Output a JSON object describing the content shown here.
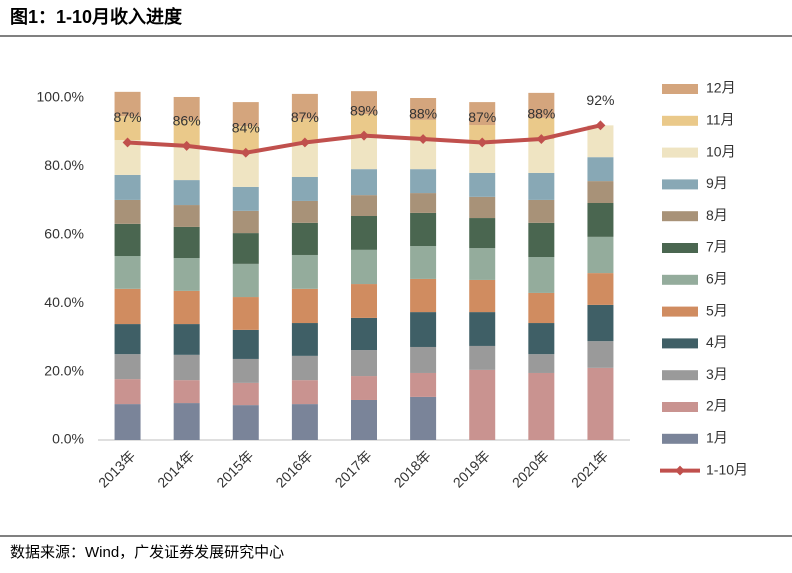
{
  "header": {
    "title": "图1：1-10月收入进度"
  },
  "footer": {
    "source": "数据来源：Wind，广发证券发展研究中心"
  },
  "chart_data": {
    "type": "stacked_bar_line",
    "categories": [
      "2013年",
      "2014年",
      "2015年",
      "2016年",
      "2017年",
      "2018年",
      "2019年",
      "2020年",
      "2021年"
    ],
    "ylim": [
      0,
      110
    ],
    "yticks": [
      {
        "value": 0,
        "label": "0.0%"
      },
      {
        "value": 20,
        "label": "20.0%"
      },
      {
        "value": 40,
        "label": "40.0%"
      },
      {
        "value": 60,
        "label": "60.0%"
      },
      {
        "value": 80,
        "label": "80.0%"
      },
      {
        "value": 100,
        "label": "100.0%"
      }
    ],
    "grid": false,
    "legend": "right",
    "series": [
      {
        "name": "1月",
        "color": "#7a8499",
        "values": [
          10.5,
          10.8,
          10.2,
          10.5,
          11.7,
          12.6,
          null,
          null,
          null
        ]
      },
      {
        "name": "2月",
        "color": "#c99390",
        "values": [
          7.3,
          6.7,
          6.5,
          7.0,
          7.0,
          7.0,
          20.5,
          19.6,
          21.1
        ]
      },
      {
        "name": "3月",
        "color": "#9a9a9a",
        "values": [
          7.3,
          7.4,
          7.0,
          7.1,
          7.6,
          7.6,
          7.0,
          5.5,
          7.8
        ]
      },
      {
        "name": "4月",
        "color": "#3f5f66",
        "values": [
          8.8,
          9.0,
          8.5,
          9.6,
          9.4,
          10.2,
          9.9,
          9.1,
          10.6
        ]
      },
      {
        "name": "5月",
        "color": "#d08c60",
        "values": [
          10.3,
          9.7,
          9.6,
          10.0,
          9.9,
          9.7,
          9.4,
          8.8,
          9.3
        ]
      },
      {
        "name": "6月",
        "color": "#94ac9c",
        "values": [
          9.6,
          9.6,
          9.7,
          9.9,
          10.0,
          9.6,
          9.3,
          10.5,
          10.6
        ]
      },
      {
        "name": "7月",
        "color": "#4a6650",
        "values": [
          9.4,
          9.1,
          9.0,
          9.4,
          9.9,
          9.7,
          8.8,
          10.0,
          9.9
        ]
      },
      {
        "name": "8月",
        "color": "#a89278",
        "values": [
          7.0,
          6.4,
          6.5,
          6.4,
          6.1,
          5.8,
          6.2,
          6.7,
          6.4
        ]
      },
      {
        "name": "9月",
        "color": "#88a8b5",
        "values": [
          7.3,
          7.3,
          7.0,
          7.0,
          7.6,
          7.0,
          7.0,
          7.9,
          7.0
        ]
      },
      {
        "name": "10月",
        "color": "#efe4c2",
        "values": [
          10.2,
          10.0,
          10.0,
          10.1,
          9.8,
          8.8,
          8.9,
          9.9,
          9.3
        ]
      },
      {
        "name": "11月",
        "color": "#eac98a",
        "values": [
          7.0,
          7.6,
          7.8,
          6.9,
          6.3,
          5.6,
          5.1,
          6.2,
          null
        ]
      },
      {
        "name": "12月",
        "color": "#d4a57d",
        "values": [
          7.1,
          6.7,
          7.0,
          7.3,
          6.7,
          6.4,
          6.7,
          7.3,
          null
        ]
      },
      {
        "name": "1-10月",
        "color": "#c0504d",
        "kind": "line",
        "values": [
          87,
          86,
          84,
          87,
          89,
          88,
          87,
          88,
          92
        ],
        "value_labels": [
          "87%",
          "86%",
          "84%",
          "87%",
          "89%",
          "88%",
          "87%",
          "88%",
          "92%"
        ]
      }
    ]
  }
}
